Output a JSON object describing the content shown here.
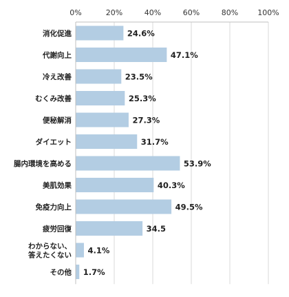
{
  "chart_data": {
    "type": "bar",
    "orientation": "horizontal",
    "categories": [
      "消化促進",
      "代謝向上",
      "冷え改善",
      "むくみ改善",
      "便秘解消",
      "ダイエット",
      "腸内環境を高める",
      "美肌効果",
      "免疫力向上",
      "疲労回復",
      "わからない、\n答えたくない",
      "その他"
    ],
    "values": [
      24.6,
      47.1,
      23.5,
      25.3,
      27.3,
      31.7,
      53.9,
      40.3,
      49.5,
      34.5,
      4.1,
      1.7
    ],
    "value_labels": [
      "24.6%",
      "47.1%",
      "23.5%",
      "25.3%",
      "27.3%",
      "31.7%",
      "53.9%",
      "40.3%",
      "49.5%",
      "34.5",
      "4.1%",
      "1.7%"
    ],
    "xlim": [
      0,
      100
    ],
    "x_ticks": [
      0,
      20,
      40,
      60,
      80,
      100
    ],
    "x_tick_labels": [
      "0%",
      "20%",
      "40%",
      "60%",
      "80%",
      "100%"
    ],
    "axis_position": "top",
    "grid": true,
    "bar_color": "#b3cde3",
    "title": "",
    "xlabel": "",
    "ylabel": ""
  }
}
